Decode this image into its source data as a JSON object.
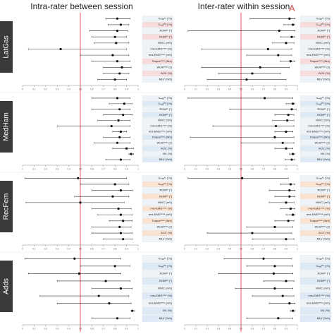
{
  "chart_data": {
    "type": "forest",
    "xlim": [
      0,
      1
    ],
    "x_ticks": [
      "0",
      "0.1",
      "0.2",
      "0.3",
      "0.4",
      "0.5",
      "0.6",
      "0.7",
      "0.8",
      "0.9",
      "1"
    ],
    "reference_line_x": 0.5,
    "column_titles": [
      "Intra-rater between session",
      "Inter-rater within session"
    ],
    "panel_annotation": "A",
    "muscles": [
      {
        "name": "LatGas",
        "rows": [
          {
            "label": "Vₘₐₓᵉˣ (°/s)",
            "color": "#eef3f8",
            "intra": [
              0.82,
              0.72,
              0.93
            ],
            "inter": [
              0.93,
              0.58,
              0.98
            ]
          },
          {
            "label": "Vₘₐₓᵁˡᵗ (°/s)",
            "color": "#f8dcdc",
            "intra": [
              0.85,
              0.74,
              0.92
            ],
            "inter": [
              0.96,
              0.88,
              0.98
            ]
          },
          {
            "label": "ROMᵉˣ (°)",
            "color": "#eef3f8",
            "intra": [
              0.82,
              0.58,
              0.91
            ],
            "inter": [
              0.84,
              0.03,
              0.98
            ]
          },
          {
            "label": "ROMᵁˡᵗ (°)",
            "color": "#f8dcdc",
            "intra": [
              0.8,
              0.6,
              0.9
            ],
            "inter": [
              0.95,
              0.85,
              0.98
            ]
          },
          {
            "label": "MVIC (mV)",
            "color": "#eef3f8",
            "intra": [
              0.81,
              0.62,
              0.92
            ],
            "inter": [
              0.9,
              0.78,
              0.97
            ]
          },
          {
            "label": "rms-EMGᵐˣᵛᶜ (%)",
            "color": "#eef3f8",
            "intra": [
              0.33,
              0.05,
              0.9
            ],
            "inter": [
              0.74,
              0.15,
              0.95
            ]
          },
          {
            "label": "rms-EMGᵐˣᵛᶜ (mV)",
            "color": "#eef3f8",
            "intra": [
              0.78,
              0.5,
              0.92
            ],
            "inter": [
              0.83,
              0.55,
              0.95
            ]
          },
          {
            "label": "Torqueᵐˣᵛᶜ (Nm)",
            "color": "#f8dcdc",
            "intra": [
              0.82,
              0.6,
              0.93
            ],
            "inter": [
              0.94,
              0.85,
              0.98
            ]
          },
          {
            "label": "Workᵐˣᵛᶜ (J)",
            "color": "#eef3f8",
            "intra": [
              0.86,
              0.7,
              0.94
            ],
            "inter": [
              0.67,
              0.15,
              0.93
            ]
          },
          {
            "label": "AOC (%)",
            "color": "#f8dcdc",
            "intra": [
              0.84,
              0.7,
              0.92
            ],
            "inter": [
              0.6,
              0.3,
              0.85
            ]
          },
          {
            "label": "MLV (%/s)",
            "color": "#eef3f8",
            "intra": [
              0.8,
              0.65,
              0.9
            ],
            "inter": [
              0.55,
              0.2,
              0.9
            ]
          }
        ]
      },
      {
        "name": "MedHam",
        "rows": [
          {
            "label": "Vₘₐₓᵉˣ (°/s)",
            "color": "#eef3f8",
            "intra": [
              0.82,
              0.6,
              0.93
            ],
            "inter": [
              0.71,
              0.03,
              0.96
            ]
          },
          {
            "label": "Vₘₐₓᵁˡᵗ (°/s)",
            "color": "#dde9f5",
            "intra": [
              0.88,
              0.75,
              0.95
            ],
            "inter": [
              0.96,
              0.9,
              0.98
            ]
          },
          {
            "label": "ROMᵉˣ (°)",
            "color": "#eef3f8",
            "intra": [
              0.84,
              0.6,
              0.93
            ],
            "inter": [
              0.95,
              0.4,
              0.99
            ]
          },
          {
            "label": "ROMᵁˡᵗ (°)",
            "color": "#dde9f5",
            "intra": [
              0.87,
              0.7,
              0.95
            ],
            "inter": [
              0.92,
              0.8,
              0.97
            ]
          },
          {
            "label": "MVIC (mV)",
            "color": "#eef3f8",
            "intra": [
              0.83,
              0.65,
              0.93
            ],
            "inter": [
              0.91,
              0.78,
              0.97
            ]
          },
          {
            "label": "rms-EMGᵐˣᵛᶜ (%)",
            "color": "#eef3f8",
            "intra": [
              0.77,
              0.3,
              0.93
            ],
            "inter": [
              0.81,
              0.25,
              0.97
            ]
          },
          {
            "label": "rms-EMGᵐˣᵛᶜ (mV)",
            "color": "#eef3f8",
            "intra": [
              0.85,
              0.78,
              0.9
            ],
            "inter": [
              0.9,
              0.8,
              0.96
            ]
          },
          {
            "label": "Torqueᵐˣᵛᶜ (Nm)",
            "color": "#dde9f5",
            "intra": [
              0.84,
              0.7,
              0.93
            ],
            "inter": [
              0.8,
              0.05,
              0.97
            ]
          },
          {
            "label": "Workᵐˣᵛᶜ (J)",
            "color": "#eef3f8",
            "intra": [
              0.82,
              0.62,
              0.93
            ],
            "inter": [
              0.87,
              0.5,
              0.97
            ]
          },
          {
            "label": "AOC (%)",
            "color": "#dde9f5",
            "intra": [
              0.9,
              0.78,
              0.96
            ],
            "inter": [
              0.9,
              0.8,
              0.96
            ]
          },
          {
            "label": "ML (%)",
            "color": "#eef3f8",
            "intra": [
              0.94,
              0.92,
              0.96
            ],
            "inter": [
              0.96,
              0.93,
              0.98
            ]
          },
          {
            "label": "MLV (%/s)",
            "color": "#dde9f5",
            "intra": [
              0.85,
              0.72,
              0.93
            ],
            "inter": [
              0.95,
              0.89,
              0.98
            ]
          }
        ]
      },
      {
        "name": "RecFem",
        "rows": [
          {
            "label": "Vₘₐₓᵉˣ (°/s)",
            "color": "#eef3f8",
            "intra": [
              0.48,
              0.02,
              0.9
            ],
            "inter": [
              0.51,
              0.03,
              0.92
            ]
          },
          {
            "label": "Vₘₐₓᵁˡᵗ (°/s)",
            "color": "#fbe3d2",
            "intra": [
              0.8,
              0.5,
              0.92
            ],
            "inter": [
              0.94,
              0.85,
              0.98
            ]
          },
          {
            "label": "ROMᵉˣ (°)",
            "color": "#eef3f8",
            "intra": [
              0.85,
              0.6,
              0.95
            ],
            "inter": [
              0.93,
              0.75,
              0.98
            ]
          },
          {
            "label": "ROMᵁˡᵗ (°)",
            "color": "#fbe3d2",
            "intra": [
              0.78,
              0.45,
              0.92
            ],
            "inter": [
              0.93,
              0.8,
              0.98
            ]
          },
          {
            "label": "MVIC (mV)",
            "color": "#eef3f8",
            "intra": [
              0.5,
              0.03,
              0.88
            ],
            "inter": [
              0.9,
              0.75,
              0.97
            ]
          },
          {
            "label": "rms-EMGᵐˣᵛᶜ (%)",
            "color": "#fbe3d2",
            "intra": [
              0.83,
              0.6,
              0.94
            ],
            "inter": [
              0.94,
              0.85,
              0.98
            ]
          },
          {
            "label": "rms-EMGᵐˣᵛᶜ (mV)",
            "color": "#eef3f8",
            "intra": [
              0.85,
              0.65,
              0.95
            ],
            "inter": [
              0.96,
              0.9,
              0.98
            ]
          },
          {
            "label": "Torqueᵐˣᵛᶜ (Nm)",
            "color": "#fbe3d2",
            "intra": [
              0.87,
              0.75,
              0.95
            ],
            "inter": [
              0.92,
              0.8,
              0.97
            ]
          },
          {
            "label": "Workᵐˣᵛᶜ (J)",
            "color": "#eef3f8",
            "intra": [
              0.84,
              0.6,
              0.94
            ],
            "inter": [
              0.8,
              0.55,
              0.96
            ]
          },
          {
            "label": "AOC (%)",
            "color": "#fbe3d2",
            "intra": [
              0.85,
              0.6,
              0.95
            ],
            "inter": [
              0.6,
              0.2,
              0.95
            ]
          },
          {
            "label": "MLV (%/s)",
            "color": "#eef3f8",
            "intra": [
              0.87,
              0.7,
              0.95
            ],
            "inter": [
              0.9,
              0.6,
              0.97
            ]
          }
        ]
      },
      {
        "name": "Adds",
        "rows": [
          {
            "label": "Vₘₐₓᵉˣ (°/s)",
            "color": "#eef3f8",
            "intra": [
              0.45,
              0.02,
              0.85
            ],
            "inter": [
              0.7,
              0.35,
              0.95
            ]
          },
          {
            "label": "Vₘₐₓᵁˡᵗ (°/s)",
            "color": "#dde9f5",
            "intra": [
              0.8,
              0.5,
              0.93
            ],
            "inter": [
              0.8,
              0.55,
              0.96
            ]
          },
          {
            "label": "ROMᵉˣ (°)",
            "color": "#eef3f8",
            "intra": [
              0.49,
              0.05,
              0.85
            ],
            "inter": [
              0.79,
              0.3,
              0.96
            ]
          },
          {
            "label": "ROMᵁˡᵗ (°)",
            "color": "#dde9f5",
            "intra": [
              0.72,
              0.3,
              0.93
            ],
            "inter": [
              0.9,
              0.7,
              0.97
            ]
          },
          {
            "label": "MVIC (mV)",
            "color": "#eef3f8",
            "intra": [
              0.85,
              0.6,
              0.95
            ],
            "inter": [
              0.8,
              0.45,
              0.96
            ]
          },
          {
            "label": "rms-EMGᵐˣᵛᶜ (%)",
            "color": "#dde9f5",
            "intra": [
              0.66,
              0.15,
              0.92
            ],
            "inter": [
              0.87,
              0.6,
              0.97
            ]
          },
          {
            "label": "rms-EMGᵐˣᵛᶜ (mV)",
            "color": "#eef3f8",
            "intra": [
              0.75,
              0.3,
              0.94
            ],
            "inter": [
              0.93,
              0.75,
              0.98
            ]
          },
          {
            "label": "ML (%)",
            "color": "#dde9f5",
            "intra": [
              0.95,
              0.94,
              0.97
            ],
            "inter": [
              0.96,
              0.94,
              0.98
            ]
          },
          {
            "label": "MLV (%/s)",
            "color": "#dde9f5",
            "intra": [
              0.82,
              0.6,
              0.93
            ],
            "inter": [
              0.83,
              0.55,
              0.96
            ]
          }
        ]
      }
    ]
  }
}
